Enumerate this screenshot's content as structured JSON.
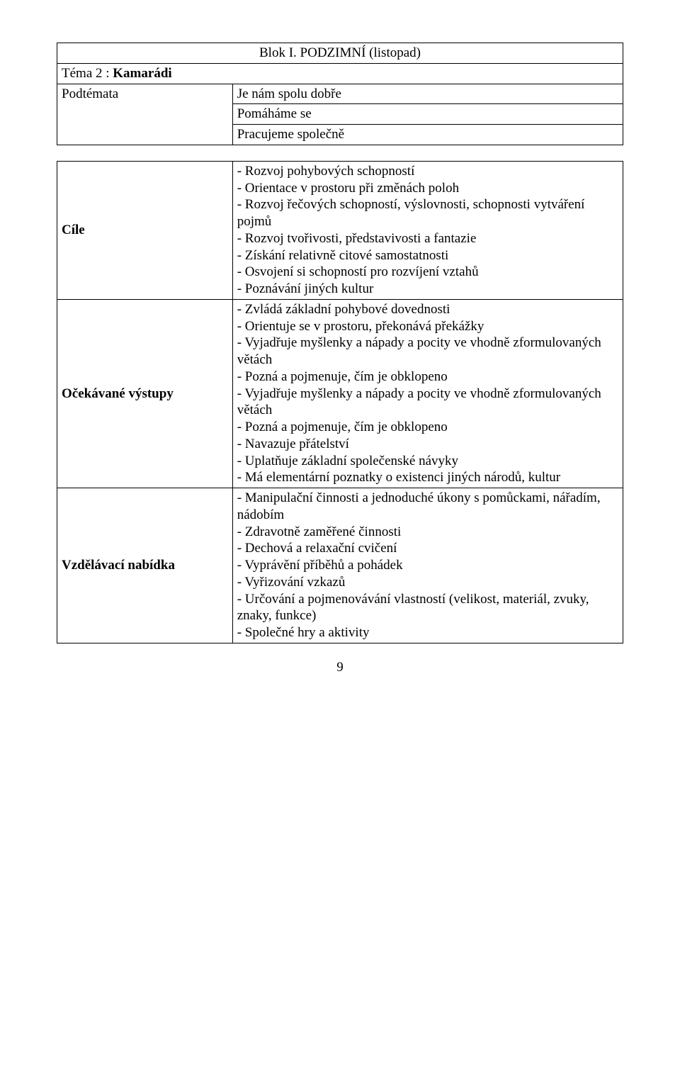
{
  "header": {
    "block_title": "Blok I. PODZIMNÍ (listopad)"
  },
  "theme_row": {
    "label": "Téma 2 : ",
    "bold": "Kamarádi"
  },
  "subtheme": {
    "label": "Podtémata",
    "items": [
      "Je nám spolu dobře",
      "Pomáháme se",
      "Pracujeme společně"
    ]
  },
  "main": {
    "rows": [
      {
        "label": "Cíle",
        "lines": [
          "- Rozvoj pohybových schopností",
          "- Orientace v prostoru při změnách poloh",
          "- Rozvoj řečových schopností, výslovnosti, schopnosti vytváření pojmů",
          "- Rozvoj tvořivosti, představivosti a fantazie",
          "- Získání relativně citové samostatnosti",
          "- Osvojení si schopností pro rozvíjení vztahů",
          "- Poznávání jiných kultur"
        ]
      },
      {
        "label": "Očekávané výstupy",
        "lines": [
          "- Zvládá základní pohybové dovednosti",
          "- Orientuje se v prostoru, překonává překážky",
          "- Vyjadřuje myšlenky a nápady a pocity ve vhodně zformulovaných větách",
          "- Pozná a pojmenuje, čím je obklopeno",
          "- Vyjadřuje myšlenky a nápady a pocity ve vhodně zformulovaných větách",
          "- Pozná a pojmenuje, čím je obklopeno",
          "- Navazuje přátelství",
          "- Uplatňuje základní společenské návyky",
          "- Má elementární poznatky o existenci jiných národů, kultur"
        ]
      },
      {
        "label": "Vzdělávací nabídka",
        "lines": [
          "- Manipulační činnosti a jednoduché úkony s pomůckami, nářadím, nádobím",
          "- Zdravotně zaměřené činnosti",
          "- Dechová a relaxační cvičení",
          "- Vyprávění příběhů a pohádek",
          "- Vyřizování vzkazů",
          "- Určování a pojmenovávání vlastností (velikost, materiál, zvuky, znaky, funkce)",
          "- Společné hry a aktivity"
        ]
      }
    ]
  },
  "page_number": "9"
}
